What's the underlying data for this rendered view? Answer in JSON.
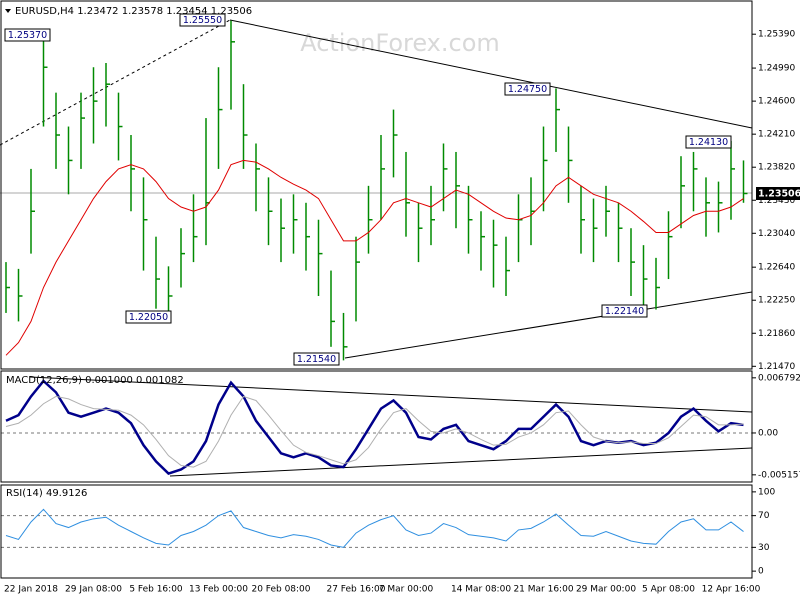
{
  "chart_data": [
    {
      "type": "ohlc",
      "title": "EURUSD,H4 1.23472 1.23578 1.23454 1.23506",
      "color": "#008a00",
      "categories": [
        null,
        null,
        "22 Jan 2018",
        null,
        null,
        null,
        null,
        "29 Jan 08:00",
        null,
        null,
        null,
        null,
        "5 Feb 16:00",
        null,
        null,
        null,
        null,
        "13 Feb 00:00",
        null,
        null,
        null,
        null,
        "20 Feb 08:00",
        null,
        null,
        null,
        null,
        null,
        "27 Feb 16:00",
        null,
        null,
        null,
        "7 Mar 00:00",
        null,
        null,
        null,
        null,
        null,
        "14 Mar 08:00",
        null,
        null,
        null,
        null,
        "21 Mar 16:00",
        null,
        null,
        null,
        null,
        "29 Mar 00:00",
        null,
        null,
        null,
        null,
        "5 Apr 08:00",
        null,
        null,
        null,
        null,
        "12 Apr 16:00",
        null
      ],
      "high": [
        1.227,
        1.2262,
        1.238,
        1.2537,
        1.247,
        1.243,
        1.247,
        1.25,
        1.2505,
        1.247,
        1.242,
        1.237,
        1.23,
        1.2265,
        1.231,
        1.235,
        1.244,
        1.25,
        1.2555,
        1.248,
        1.241,
        1.237,
        1.2345,
        1.235,
        1.234,
        1.232,
        1.226,
        1.221,
        1.23,
        1.236,
        1.242,
        1.245,
        1.24,
        1.234,
        1.236,
        1.241,
        1.24,
        1.236,
        1.233,
        1.232,
        1.23,
        1.235,
        1.237,
        1.243,
        1.2475,
        1.243,
        1.236,
        1.2345,
        1.236,
        1.234,
        1.231,
        1.229,
        1.2275,
        1.233,
        1.2395,
        1.24,
        1.237,
        1.2365,
        1.2413,
        1.239
      ],
      "low": [
        1.221,
        1.22,
        1.228,
        1.243,
        1.238,
        1.235,
        1.238,
        1.241,
        1.243,
        1.239,
        1.233,
        1.226,
        1.2215,
        1.2205,
        1.224,
        1.227,
        1.229,
        1.238,
        1.245,
        1.238,
        1.233,
        1.229,
        1.227,
        1.228,
        1.226,
        1.223,
        1.217,
        1.2154,
        1.22,
        1.228,
        1.232,
        1.237,
        1.23,
        1.227,
        1.229,
        1.233,
        1.231,
        1.228,
        1.226,
        1.224,
        1.223,
        1.227,
        1.229,
        1.233,
        1.24,
        1.234,
        1.228,
        1.227,
        1.23,
        1.227,
        1.223,
        1.2214,
        1.2214,
        1.225,
        1.231,
        1.233,
        1.23,
        1.2305,
        1.232,
        1.234
      ],
      "close": [
        1.224,
        1.223,
        1.233,
        1.25,
        1.242,
        1.239,
        1.244,
        1.246,
        1.248,
        1.243,
        1.238,
        1.232,
        1.225,
        1.223,
        1.228,
        1.23,
        1.234,
        1.245,
        1.253,
        1.242,
        1.238,
        1.233,
        1.231,
        1.232,
        1.23,
        1.228,
        1.22,
        1.217,
        1.227,
        1.232,
        1.238,
        1.242,
        1.234,
        1.231,
        1.232,
        1.238,
        1.236,
        1.232,
        1.23,
        1.229,
        1.226,
        1.232,
        1.233,
        1.239,
        1.245,
        1.239,
        1.232,
        1.231,
        1.233,
        1.231,
        1.227,
        1.225,
        1.224,
        1.23,
        1.236,
        1.238,
        1.234,
        1.234,
        1.238,
        1.2351
      ],
      "ma": {
        "color": "#e00000",
        "values": [
          1.216,
          1.2175,
          1.22,
          1.224,
          1.227,
          1.2295,
          1.232,
          1.2345,
          1.2365,
          1.238,
          1.2385,
          1.238,
          1.2365,
          1.2345,
          1.2335,
          1.233,
          1.2335,
          1.2355,
          1.2385,
          1.239,
          1.2388,
          1.238,
          1.237,
          1.2362,
          1.2355,
          1.2345,
          1.232,
          1.2295,
          1.2295,
          1.2305,
          1.232,
          1.234,
          1.2345,
          1.234,
          1.2335,
          1.2345,
          1.2355,
          1.235,
          1.234,
          1.233,
          1.2322,
          1.232,
          1.2325,
          1.234,
          1.236,
          1.237,
          1.236,
          1.235,
          1.2345,
          1.234,
          1.233,
          1.2318,
          1.2305,
          1.2305,
          1.2315,
          1.2325,
          1.233,
          1.233,
          1.2335,
          1.2345
        ]
      },
      "ylim": [
        1.2145,
        1.2577
      ],
      "yticks": [
        {
          "value": 1.2539,
          "label": "1.25390"
        },
        {
          "value": 1.2499,
          "label": "1.24990"
        },
        {
          "value": 1.246,
          "label": "1.24600"
        },
        {
          "value": 1.2421,
          "label": "1.24210"
        },
        {
          "value": 1.2382,
          "label": "1.23820"
        },
        {
          "value": 1.2343,
          "label": "1.23430"
        },
        {
          "value": 1.2304,
          "label": "1.23040"
        },
        {
          "value": 1.2264,
          "label": "1.22640"
        },
        {
          "value": 1.2225,
          "label": "1.22250"
        },
        {
          "value": 1.2186,
          "label": "1.21860"
        },
        {
          "value": 1.2147,
          "label": "1.21470"
        }
      ],
      "annotations": [
        "1.25370",
        "1.25550",
        "1.24750",
        "1.24130",
        "1.22050",
        "1.21540",
        "1.22140"
      ],
      "last_price": "1.23506",
      "watermark": "ActionForex.com"
    },
    {
      "type": "line",
      "title": "MACD(12,26,9) 0.001000 0.001082",
      "series": [
        {
          "color": "#00008b",
          "width": 2.5,
          "values": [
            0.0015,
            0.0022,
            0.0045,
            0.0064,
            0.005,
            0.0025,
            0.002,
            0.0025,
            0.003,
            0.0025,
            0.0012,
            -0.0015,
            -0.0035,
            -0.005,
            -0.0045,
            -0.0035,
            -0.001,
            0.0035,
            0.0062,
            0.0045,
            0.0015,
            -0.0005,
            -0.0025,
            -0.003,
            -0.0025,
            -0.003,
            -0.004,
            -0.0042,
            -0.002,
            0.0005,
            0.003,
            0.004,
            0.0025,
            -0.0005,
            -0.0008,
            0.0005,
            0.001,
            -0.001,
            -0.0015,
            -0.002,
            -0.001,
            0.0005,
            0.0005,
            0.002,
            0.0035,
            0.002,
            -0.001,
            -0.0015,
            -0.001,
            -0.0012,
            -0.001,
            -0.0015,
            -0.0012,
            0.0,
            0.002,
            0.003,
            0.0015,
            0.0002,
            0.0012,
            0.001
          ]
        },
        {
          "color": "#b0b0b0",
          "width": 1,
          "values": [
            0.0008,
            0.0012,
            0.0022,
            0.0036,
            0.0045,
            0.0042,
            0.0035,
            0.003,
            0.0029,
            0.0028,
            0.0022,
            0.001,
            -0.0008,
            -0.0028,
            -0.004,
            -0.0042,
            -0.0035,
            -0.001,
            0.0022,
            0.0045,
            0.004,
            0.0022,
            0.0003,
            -0.0015,
            -0.0024,
            -0.0028,
            -0.0033,
            -0.0038,
            -0.0033,
            -0.0018,
            0.0005,
            0.0025,
            0.003,
            0.0015,
            0.0002,
            0.0,
            0.0005,
            0.0,
            -0.0008,
            -0.0015,
            -0.0014,
            -0.0005,
            0.0,
            0.001,
            0.0025,
            0.0027,
            0.001,
            -0.0005,
            -0.001,
            -0.0012,
            -0.0011,
            -0.0013,
            -0.0013,
            -0.0006,
            0.0008,
            0.0022,
            0.002,
            0.001,
            0.001,
            0.0011
          ]
        }
      ],
      "ylim": [
        -0.00604,
        0.00751
      ],
      "yticks": [
        0.006792,
        {
          "value": 0,
          "label": "0.00"
        },
        -0.005157
      ]
    },
    {
      "type": "line",
      "title": "RSI(14) 49.9126",
      "series": [
        {
          "color": "#2f8fe0",
          "width": 1,
          "values": [
            45,
            40,
            62,
            78,
            60,
            55,
            62,
            66,
            68,
            58,
            50,
            42,
            35,
            33,
            45,
            50,
            58,
            70,
            76,
            55,
            50,
            45,
            42,
            46,
            44,
            40,
            33,
            30,
            48,
            58,
            65,
            70,
            52,
            45,
            48,
            60,
            55,
            46,
            44,
            42,
            38,
            52,
            54,
            62,
            72,
            58,
            45,
            44,
            50,
            44,
            38,
            35,
            34,
            50,
            62,
            66,
            52,
            52,
            62,
            49.9126
          ]
        }
      ],
      "ylim": [
        -7.4,
        107.4
      ],
      "yticks": [
        100,
        70,
        30,
        0
      ]
    }
  ]
}
